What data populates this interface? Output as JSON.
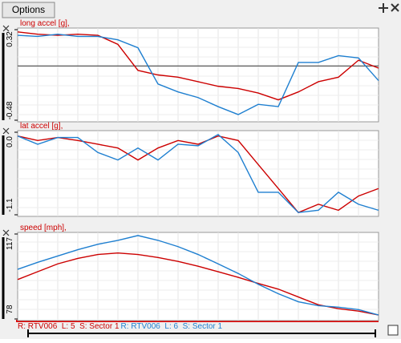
{
  "toolbar": {
    "button": "Options"
  },
  "chart_data": [
    {
      "type": "line",
      "title": "long accel [g],",
      "ylim": [
        -0.48,
        0.32
      ],
      "yticks": [
        -0.48,
        0.32
      ],
      "grid": true,
      "zero_line": true,
      "series": [
        {
          "color": "#cc0000",
          "values": [
            0.3,
            0.28,
            0.27,
            0.28,
            0.27,
            0.19,
            -0.04,
            -0.08,
            -0.1,
            -0.14,
            -0.18,
            -0.2,
            -0.24,
            -0.3,
            -0.23,
            -0.14,
            -0.1,
            0.05,
            -0.02
          ]
        },
        {
          "color": "#1e7fd0",
          "values": [
            0.27,
            0.26,
            0.28,
            0.26,
            0.26,
            0.23,
            0.16,
            -0.16,
            -0.23,
            -0.28,
            -0.36,
            -0.43,
            -0.34,
            -0.36,
            0.03,
            0.03,
            0.09,
            0.07,
            -0.13
          ]
        }
      ]
    },
    {
      "type": "line",
      "title": "lat accel [g],",
      "ylim": [
        -1.1,
        0
      ],
      "yticks": [
        -1.1,
        {
          "value": 0,
          "label": "0.0"
        }
      ],
      "grid": true,
      "series": [
        {
          "color": "#cc0000",
          "values": [
            -0.05,
            -0.11,
            -0.07,
            -0.11,
            -0.16,
            -0.21,
            -0.37,
            -0.21,
            -0.11,
            -0.16,
            -0.05,
            -0.11,
            -0.43,
            -0.75,
            -1.07,
            -0.96,
            -1.04,
            -0.85,
            -0.75
          ]
        },
        {
          "color": "#1e7fd0",
          "values": [
            -0.05,
            -0.16,
            -0.07,
            -0.07,
            -0.27,
            -0.37,
            -0.21,
            -0.37,
            -0.16,
            -0.18,
            -0.03,
            -0.27,
            -0.8,
            -0.8,
            -1.07,
            -1.04,
            -0.8,
            -0.96,
            -1.04
          ]
        }
      ]
    },
    {
      "type": "line",
      "title": "speed [mph],",
      "ylim": [
        78,
        117
      ],
      "yticks": [
        78,
        117
      ],
      "grid": true,
      "series": [
        {
          "color": "#cc0000",
          "values": [
            96.1,
            99.7,
            103.3,
            105.8,
            107.6,
            108.3,
            107.6,
            106.2,
            104.4,
            102.2,
            99.7,
            97.1,
            94.3,
            91.7,
            88.1,
            84.5,
            82.7,
            81.6,
            79.8
          ]
        },
        {
          "color": "#1e7fd0",
          "values": [
            100.8,
            104.0,
            106.9,
            109.8,
            112.3,
            114.1,
            116.3,
            114.1,
            111.2,
            107.6,
            103.3,
            98.9,
            93.9,
            89.6,
            85.9,
            84.1,
            83.4,
            82.3,
            79.8
          ]
        }
      ]
    }
  ],
  "legend": [
    {
      "text": "R: RTV006  L: 5  S: Sector 1",
      "color": "#cc0000"
    },
    {
      "text": "R: RTV006  L: 6  S: Sector 1",
      "color": "#1e7fd0"
    }
  ]
}
